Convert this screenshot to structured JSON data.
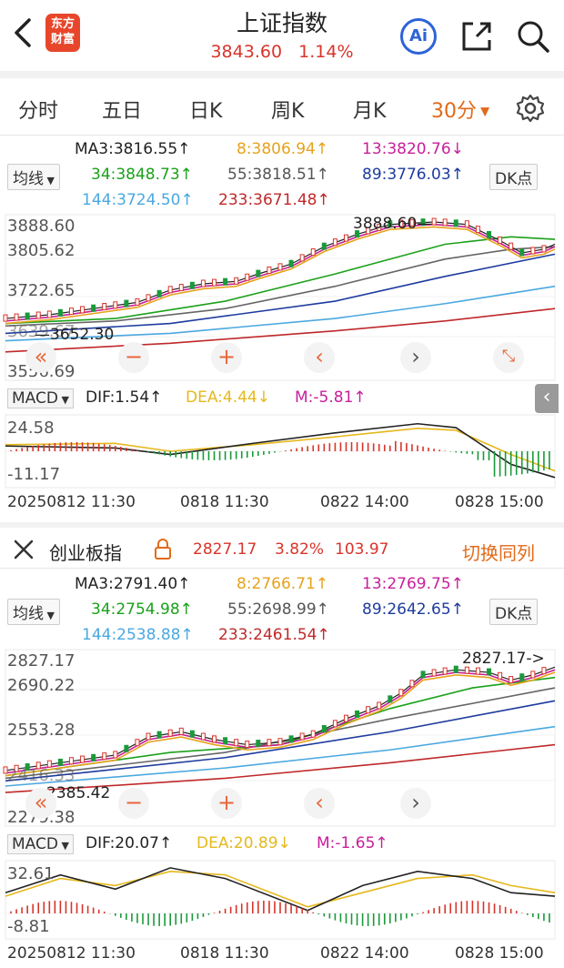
{
  "header": {
    "title": "上证指数",
    "price": "3843.60",
    "change_pct": "1.14%",
    "logo_text": "东方财富",
    "ai_label": "Ai"
  },
  "tabs": [
    {
      "label": "分时"
    },
    {
      "label": "五日"
    },
    {
      "label": "日K"
    },
    {
      "label": "周K"
    },
    {
      "label": "月K"
    },
    {
      "label": "30分"
    }
  ],
  "active_tab": "30分",
  "main": {
    "ma_selector": "均线",
    "dk_button": "DK点",
    "ma": {
      "ma3": "MA3:3816.55↑",
      "ma8": "8:3806.94↑",
      "ma13": "13:3820.76↓",
      "ma34": "34:3848.73↑",
      "ma55": "55:3818.51↑",
      "ma89": "89:3776.03↑",
      "ma144": "144:3724.50↑",
      "ma233": "233:3671.48↑"
    },
    "y_labels": [
      "3888.60",
      "3805.62",
      "3722.65",
      "3639.67",
      "3556.69"
    ],
    "high_label": "3888.60",
    "low_label": "3652.30",
    "macd": {
      "label": "MACD",
      "dif": "DIF:1.54↑",
      "dea": "DEA:4.44↓",
      "m": "M:-5.81↑",
      "top": "24.58",
      "bottom": "-11.17"
    },
    "time_labels": {
      "start": "20250812 11:30",
      "mid1": "0818 11:30",
      "mid2": "0822 14:00",
      "end": "0828 15:00"
    }
  },
  "second": {
    "name": "创业板指",
    "price": "2827.17",
    "change_pct": "3.82%",
    "change": "103.97",
    "switch_label": "切换同列",
    "ma_selector": "均线",
    "dk_button": "DK点",
    "ma": {
      "ma3": "MA3:2791.40↑",
      "ma8": "8:2766.71↑",
      "ma13": "13:2769.75↑",
      "ma34": "34:2754.98↑",
      "ma55": "55:2698.99↑",
      "ma89": "89:2642.65↑",
      "ma144": "144:2538.88↑",
      "ma233": "233:2461.54↑"
    },
    "y_labels": [
      "2827.17",
      "2690.22",
      "2553.28",
      "2416.33",
      "2279.38"
    ],
    "high_label": "2827.17",
    "low_label": "2385.42",
    "macd": {
      "label": "MACD",
      "dif": "DIF:20.07↑",
      "dea": "DEA:20.89↓",
      "m": "M:-1.65↑",
      "top": "32.61",
      "bottom": "-8.81"
    },
    "time_labels": {
      "start": "20250812 11:30",
      "mid1": "0818 11:30",
      "mid2": "0822 14:00",
      "end": "0828 15:00"
    }
  },
  "colors": {
    "up": "#d8342a",
    "down": "#1a9a3a",
    "accent": "#e26a19",
    "ma3": "#222222",
    "ma8": "#e6a21c",
    "ma13": "#c81e9a",
    "ma34": "#1aa11a",
    "ma55": "#666666",
    "ma89": "#1d3b9e",
    "ma144": "#4aa8e0",
    "ma233": "#c0282a",
    "dea": "#e6b81c"
  }
}
